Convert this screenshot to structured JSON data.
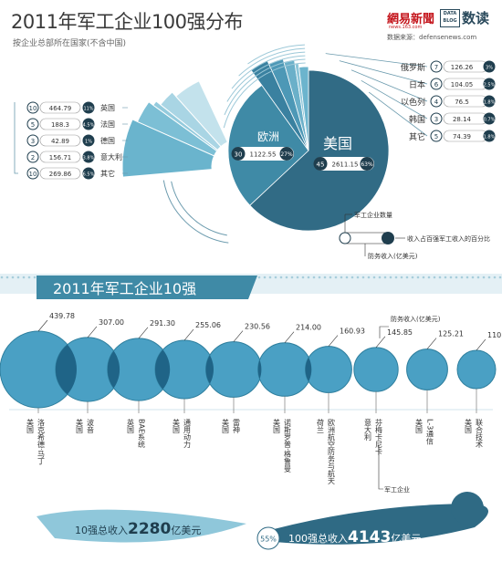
{
  "header": {
    "title": "2011年军工企业100强分布",
    "subtitle": "按企业总部所在国家(不含中国)",
    "logo_netease": "網易新聞",
    "logo_netease_sub": "news.163.com",
    "logo_datablog": "DATA BLOG",
    "logo_shudu": "数读",
    "source": "数据来源：defensenews.com"
  },
  "colors": {
    "dark_teal": "#316b85",
    "mid_teal": "#3f8aa6",
    "light_teal": "#6cb4cd",
    "pale_teal": "#b7d9e6",
    "navy": "#1f3e4e",
    "circle_fill": "#4aa0c4",
    "circle_stroke": "#2f7f9e",
    "overlap": "#1f6487"
  },
  "chart_data": [
    {
      "type": "pie",
      "title": "2011年军工企业100强分布",
      "groups": [
        {
          "name": "美国",
          "count": 45,
          "revenue": 2611.15,
          "share": "63%"
        },
        {
          "name": "欧洲",
          "count": 30,
          "revenue": 1122.55,
          "share": "27%",
          "members": [
            {
              "name": "英国",
              "count": 10,
              "revenue": 464.79,
              "share": "11%"
            },
            {
              "name": "法国",
              "count": 5,
              "revenue": 188.3,
              "share": "4.5%"
            },
            {
              "name": "德国",
              "count": 3,
              "revenue": 42.89,
              "share": "1%"
            },
            {
              "name": "意大利",
              "count": 2,
              "revenue": 156.71,
              "share": "3.8%"
            },
            {
              "name": "其它",
              "count": 10,
              "revenue": 269.86,
              "share": "6.5%"
            }
          ]
        },
        {
          "name": "俄罗斯",
          "count": 7,
          "revenue": 126.26,
          "share": "3%"
        },
        {
          "name": "日本",
          "count": 6,
          "revenue": 104.05,
          "share": "2.5%"
        },
        {
          "name": "以色列",
          "count": 4,
          "revenue": 76.5,
          "share": "1.8%"
        },
        {
          "name": "韩国",
          "count": 3,
          "revenue": 28.14,
          "share": "0.7%"
        },
        {
          "name": "其它",
          "count": 5,
          "revenue": 74.39,
          "share": "1.8%"
        }
      ],
      "legend": {
        "count_label": "军工企业数量",
        "share_label": "收入占百强军工收入的百分比",
        "revenue_label": "防务收入(亿美元)"
      }
    },
    {
      "type": "bar",
      "title": "2011年军工企业10强",
      "value_note": "防务收入(亿美元)",
      "company_note": "军工企业",
      "companies": [
        {
          "country": "美国",
          "name": "洛克希德·马丁",
          "value": 439.78
        },
        {
          "country": "美国",
          "name": "波音",
          "value": 307.0
        },
        {
          "country": "英国",
          "name": "BAE系统",
          "value": 291.3
        },
        {
          "country": "美国",
          "name": "通用动力",
          "value": 255.06
        },
        {
          "country": "美国",
          "name": "雷神",
          "value": 230.56
        },
        {
          "country": "美国",
          "name": "诺斯罗普·格鲁曼",
          "value": 214.0
        },
        {
          "country": "荷兰",
          "name": "欧洲航空防务与航天",
          "value": 160.93
        },
        {
          "country": "意大利",
          "name": "芬梅卡尼卡",
          "value": 145.85
        },
        {
          "country": "美国",
          "name": "L-3通信",
          "value": 125.21
        },
        {
          "country": "美国",
          "name": "联合技术",
          "value": 110.0
        }
      ]
    }
  ],
  "footer": {
    "left_prefix": "10强总收入",
    "left_value": "2280",
    "left_unit": "亿美元",
    "share": "55%",
    "right_prefix": "100强总收入",
    "right_value": "4143",
    "right_unit": "亿美元"
  }
}
